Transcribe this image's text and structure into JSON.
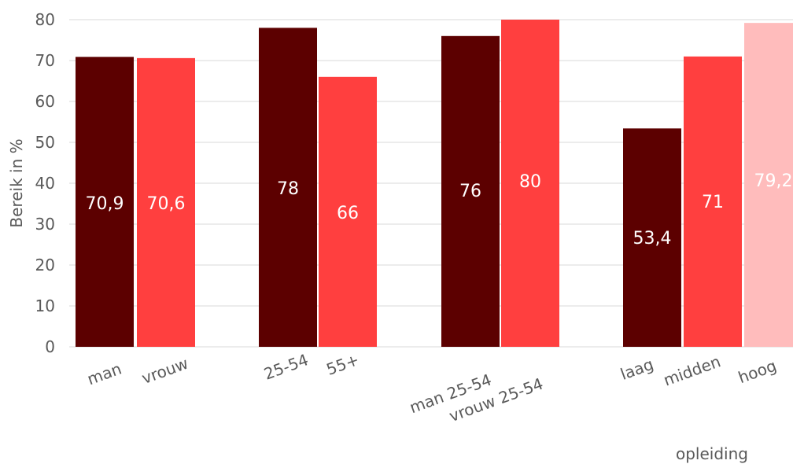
{
  "chart_data": {
    "type": "bar",
    "ylabel": "Bereik in %",
    "group_label": "opleiding",
    "ylim": [
      0,
      80
    ],
    "y_ticks": [
      "0",
      "10",
      "20",
      "30",
      "40",
      "50",
      "60",
      "70",
      "80"
    ],
    "grid": true,
    "bars": [
      {
        "category": "man",
        "value": 70.9,
        "label": "70,9",
        "color": "#5c0000"
      },
      {
        "category": "vrouw",
        "value": 70.6,
        "label": "70,6",
        "color": "#ff3f3f"
      },
      {
        "category": "25-54",
        "value": 78,
        "label": "78",
        "color": "#5c0000"
      },
      {
        "category": "55+",
        "value": 66,
        "label": "66",
        "color": "#ff3f3f"
      },
      {
        "category": "man 25-54",
        "value": 76,
        "label": "76",
        "color": "#5c0000"
      },
      {
        "category": "vrouw 25-54",
        "value": 80,
        "label": "80",
        "color": "#ff3f3f"
      },
      {
        "category": "laag",
        "value": 53.4,
        "label": "53,4",
        "color": "#5c0000"
      },
      {
        "category": "midden",
        "value": 71,
        "label": "71",
        "color": "#ff3f3f"
      },
      {
        "category": "hoog",
        "value": 79.2,
        "label": "79,2",
        "color": "#ffbcbc"
      }
    ]
  }
}
